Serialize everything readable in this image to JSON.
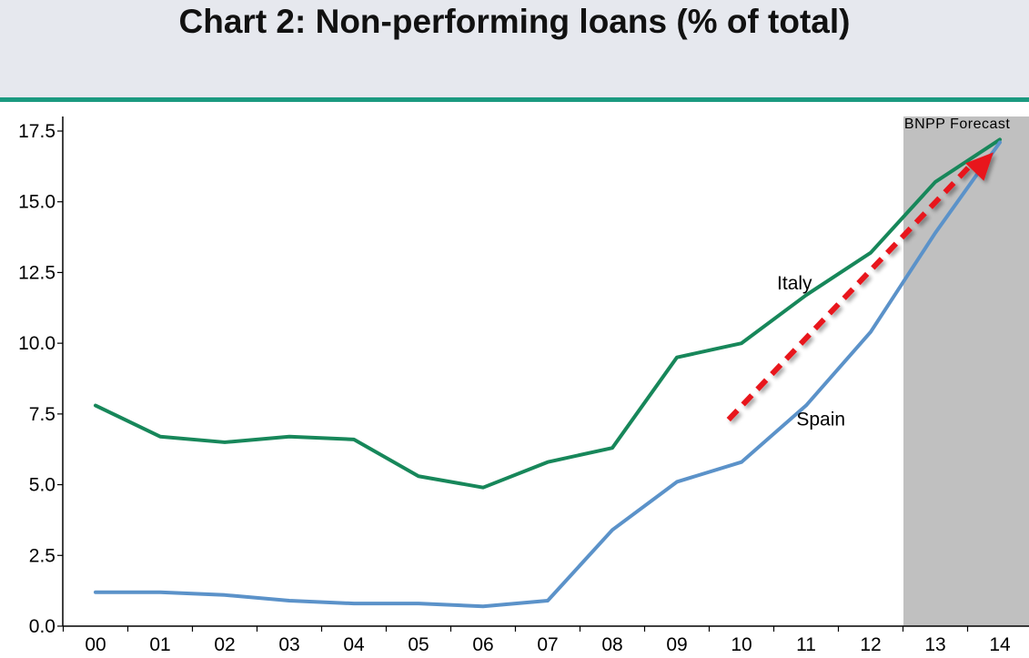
{
  "title": "Chart 2: Non-performing loans (% of total)",
  "colors": {
    "italy": "#17875a",
    "spain": "#5b92c9",
    "forecast_band": "#c0c0c0",
    "arrow": "#e8141b",
    "header_bg": "#e6e8ee",
    "divider": "#1b9a80"
  },
  "chart_data": {
    "type": "line",
    "title": "Chart 2: Non-performing loans (% of total)",
    "x": [
      "00",
      "01",
      "02",
      "03",
      "04",
      "05",
      "06",
      "07",
      "08",
      "09",
      "10",
      "11",
      "12",
      "13",
      "14"
    ],
    "ylim": [
      0,
      17.5
    ],
    "yticks": [
      "0.0",
      "2.5",
      "5.0",
      "7.5",
      "10.0",
      "12.5",
      "15.0",
      "17.5"
    ],
    "grid": false,
    "series": [
      {
        "name": "Italy",
        "values": [
          7.8,
          6.7,
          6.5,
          6.7,
          6.6,
          5.3,
          4.9,
          5.8,
          6.3,
          9.5,
          10.0,
          11.7,
          13.2,
          15.7,
          17.2
        ]
      },
      {
        "name": "Spain",
        "values": [
          1.2,
          1.2,
          1.1,
          0.9,
          0.8,
          0.8,
          0.7,
          0.9,
          3.4,
          5.1,
          5.8,
          7.8,
          10.4,
          13.9,
          17.1
        ]
      }
    ],
    "forecast_region": {
      "from": "12.5",
      "to": "14",
      "label": "BNPP Forecast"
    },
    "annotations": [
      "Italy",
      "Spain",
      "BNPP Forecast"
    ]
  }
}
